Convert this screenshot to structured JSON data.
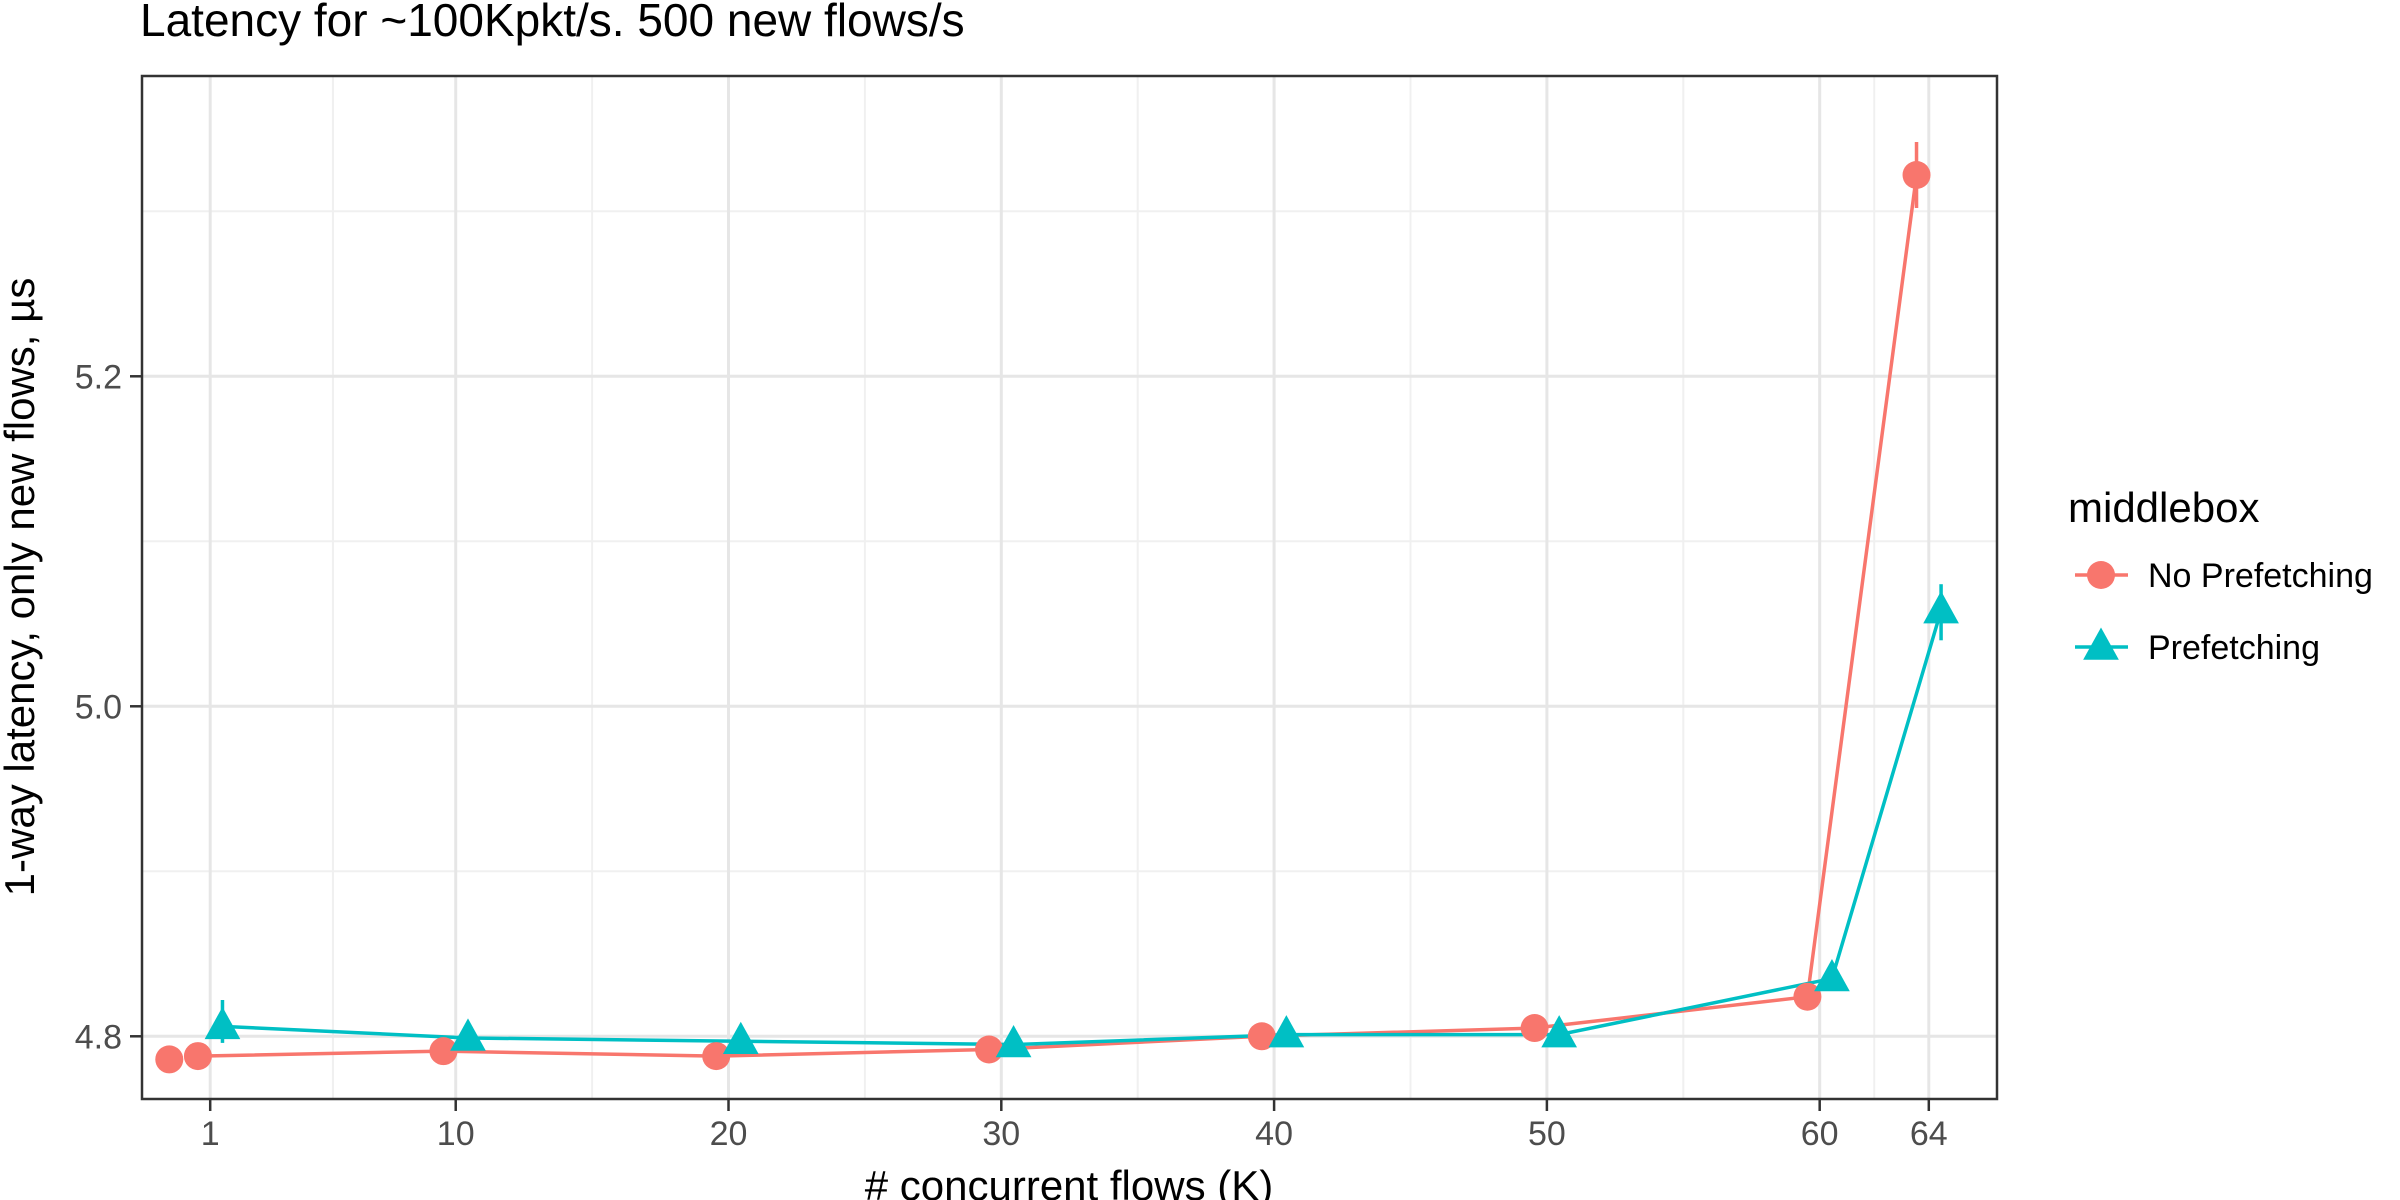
{
  "chart_data": {
    "type": "line",
    "title": "Latency for ~100Kpkt/s. 500 new flows/s",
    "xlabel": "# concurrent flows (K)",
    "ylabel": "1-way latency, only new flows, µs",
    "xlim": [
      -1.5,
      66.5
    ],
    "ylim": [
      4.762,
      5.382
    ],
    "x_ticks": [
      1,
      10,
      20,
      30,
      40,
      50,
      60,
      64
    ],
    "x_tick_labels": [
      "1",
      "10",
      "20",
      "30",
      "40",
      "50",
      "60",
      "64"
    ],
    "y_ticks": [
      4.8,
      5.0,
      5.2
    ],
    "y_tick_labels": [
      "4.8",
      "5.0",
      "5.2"
    ],
    "grid": true,
    "legend": {
      "title": "middlebox",
      "position": "right"
    },
    "series": [
      {
        "name": "No Prefetching",
        "color": "#F8766D",
        "marker": "circle",
        "x": [
          1,
          10,
          20,
          30,
          40,
          50,
          60,
          64
        ],
        "y": [
          4.788,
          4.791,
          4.788,
          4.792,
          4.8,
          4.805,
          4.824,
          5.322
        ],
        "y_err_low": [
          4.788,
          4.791,
          4.788,
          4.792,
          4.8,
          4.805,
          4.824,
          5.302
        ],
        "y_err_high": [
          4.788,
          4.791,
          4.788,
          4.792,
          4.8,
          4.805,
          4.824,
          5.342
        ],
        "extra_points": [
          {
            "x": -0.5,
            "y": 4.786
          }
        ]
      },
      {
        "name": "Prefetching",
        "color": "#00BFC4",
        "marker": "triangle",
        "x": [
          1,
          10,
          20,
          30,
          40,
          50,
          60,
          64
        ],
        "y": [
          4.806,
          4.799,
          4.797,
          4.795,
          4.801,
          4.801,
          4.835,
          5.058
        ],
        "y_err_low": [
          4.796,
          4.799,
          4.797,
          4.795,
          4.801,
          4.801,
          4.835,
          5.04
        ],
        "y_err_high": [
          4.822,
          4.799,
          4.797,
          4.795,
          4.801,
          4.801,
          4.835,
          5.074
        ]
      }
    ]
  }
}
